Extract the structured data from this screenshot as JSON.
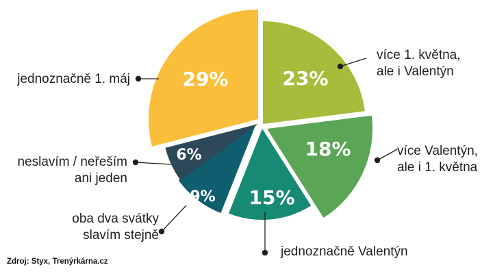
{
  "chart_data": {
    "type": "pie",
    "slices": [
      {
        "label": [
          "více 1. května,",
          "ale i Valentýn"
        ],
        "value": 23,
        "display": "23%",
        "color": "#a5bd3a"
      },
      {
        "label": [
          "více Valentýn,",
          "ale i 1. května"
        ],
        "value": 18,
        "display": "18%",
        "color": "#5aa556"
      },
      {
        "label": [
          "jednoznačně Valentýn"
        ],
        "value": 15,
        "display": "15%",
        "color": "#178a74"
      },
      {
        "label": [
          "oba dva svátky",
          "slavím stejně"
        ],
        "value": 9,
        "display": "9%",
        "color": "#0e5e70"
      },
      {
        "label": [
          "neslavím / neřeším",
          "ani jeden"
        ],
        "value": 6,
        "display": "6%",
        "color": "#2d4858"
      },
      {
        "label": [
          "jednoznačně 1. máj"
        ],
        "value": 29,
        "display": "29%",
        "color": "#fbbe3a"
      }
    ],
    "legend": "none"
  },
  "source": "Zdroj: Styx, Trenýrkárna.cz"
}
